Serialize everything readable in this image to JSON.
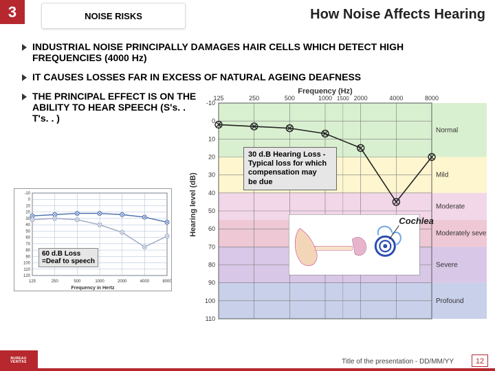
{
  "header": {
    "number": "3",
    "mid_title": "NOISE RISKS",
    "main_title": "How Noise Affects Hearing"
  },
  "bullets": [
    "INDUSTRIAL NOISE PRINCIPALLY DAMAGES HAIR CELLS WHICH DETECT HIGH FREQUENCIES (4000 Hz)",
    "IT CAUSES LOSSES FAR IN EXCESS OF NATURAL AGEING DEAFNESS",
    "THE PRINCIPAL EFFECT IS ON THE ABILITY TO HEAR SPEECH (S's. . T's. . )"
  ],
  "small_chart": {
    "xlabel": "Frequency in Hertz",
    "ylabel": "",
    "xticks": [
      "125",
      "250",
      "500",
      "1000",
      "2000",
      "4000",
      "8000"
    ],
    "yticks": [
      "-10",
      "0",
      "10",
      "20",
      "30",
      "40",
      "50",
      "60",
      "70",
      "80",
      "90",
      "100",
      "110",
      "120"
    ],
    "line1": {
      "color": "#4a6fb0",
      "values": [
        26,
        24,
        22,
        22,
        24,
        28,
        36
      ]
    },
    "line2": {
      "color": "#9aa6c4",
      "values": [
        32,
        30,
        32,
        40,
        52,
        75,
        58
      ]
    },
    "bg": "#ffffff",
    "grid": "#a8b8d4",
    "axis": "#444"
  },
  "small_overlay_lines": [
    "60 d.B Loss",
    "=Deaf to speech"
  ],
  "big_chart": {
    "title_top": "Frequency (Hz)",
    "ylabel": "Hearing level (dB)",
    "xticks": [
      "125",
      "250",
      "500",
      "1000",
      "2000",
      "4000",
      "8000"
    ],
    "yticks": [
      "-10",
      "0",
      "10",
      "20",
      "30",
      "40",
      "50",
      "60",
      "70",
      "80",
      "90",
      "100",
      "110"
    ],
    "bands": [
      {
        "from": -10,
        "to": 20,
        "color": "#d9f0d0",
        "label": "Normal"
      },
      {
        "from": 20,
        "to": 40,
        "color": "#fdf6cf",
        "label": "Mild"
      },
      {
        "from": 40,
        "to": 55,
        "color": "#f2d7e8",
        "label": "Moderate"
      },
      {
        "from": 55,
        "to": 70,
        "color": "#eec8d5",
        "label": "Moderately severe"
      },
      {
        "from": 70,
        "to": 90,
        "color": "#d8c7e6",
        "label": "Severe"
      },
      {
        "from": 90,
        "to": 110,
        "color": "#c9d0ea",
        "label": "Profound"
      }
    ],
    "marker_shape": "circle-x",
    "series": {
      "color": "#222",
      "values": [
        2,
        3,
        4,
        7,
        15,
        45,
        20
      ]
    },
    "grid": "#777",
    "axis": "#333"
  },
  "big_overlay_lines": [
    "30 d.B Hearing Loss -",
    "Typical loss for which",
    "compensation may",
    "  be due"
  ],
  "ear_diagram": {
    "label": "Cochlea"
  },
  "footer": {
    "text": "Title of the presentation   - DD/MM/YY",
    "page": "12",
    "logo_text": "BUREAU VERITAS"
  },
  "colors": {
    "brand_red": "#b6272e"
  }
}
